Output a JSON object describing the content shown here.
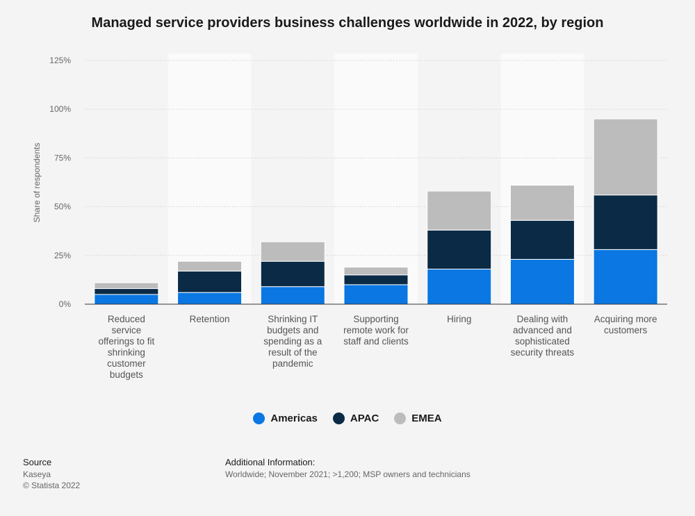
{
  "chart_data": {
    "type": "bar",
    "stacked": true,
    "title": "Managed service providers business challenges worldwide in 2022, by region",
    "ylabel": "Share of respondents",
    "xlabel": "",
    "ylim": [
      0,
      125
    ],
    "yticks": [
      "0%",
      "25%",
      "50%",
      "75%",
      "100%",
      "125%"
    ],
    "categories": [
      [
        "Reduced",
        "service",
        "offerings to fit",
        "shrinking",
        "customer",
        "budgets"
      ],
      [
        "Retention"
      ],
      [
        "Shrinking IT",
        "budgets and",
        "spending as a",
        "result of the",
        "pandemic"
      ],
      [
        "Supporting",
        "remote work for",
        "staff and clients"
      ],
      [
        "Hiring"
      ],
      [
        "Dealing with",
        "advanced and",
        "sophisticated",
        "security threats"
      ],
      [
        "Acquiring more",
        "customers"
      ]
    ],
    "series": [
      {
        "name": "Americas",
        "color": "#0a77e3",
        "values": [
          5,
          6,
          9,
          10,
          18,
          23,
          28
        ]
      },
      {
        "name": "APAC",
        "color": "#0a2a45",
        "values": [
          3,
          11,
          13,
          5,
          20,
          20,
          28
        ]
      },
      {
        "name": "EMEA",
        "color": "#bcbcbc",
        "values": [
          3,
          5,
          10,
          4,
          20,
          18,
          39
        ]
      }
    ],
    "legend_position": "bottom-center"
  },
  "source": {
    "heading": "Source",
    "lines": [
      "Kaseya",
      "© Statista 2022"
    ]
  },
  "additional_info": {
    "heading": "Additional Information:",
    "text": "Worldwide; November 2021; >1,200; MSP owners and technicians"
  }
}
